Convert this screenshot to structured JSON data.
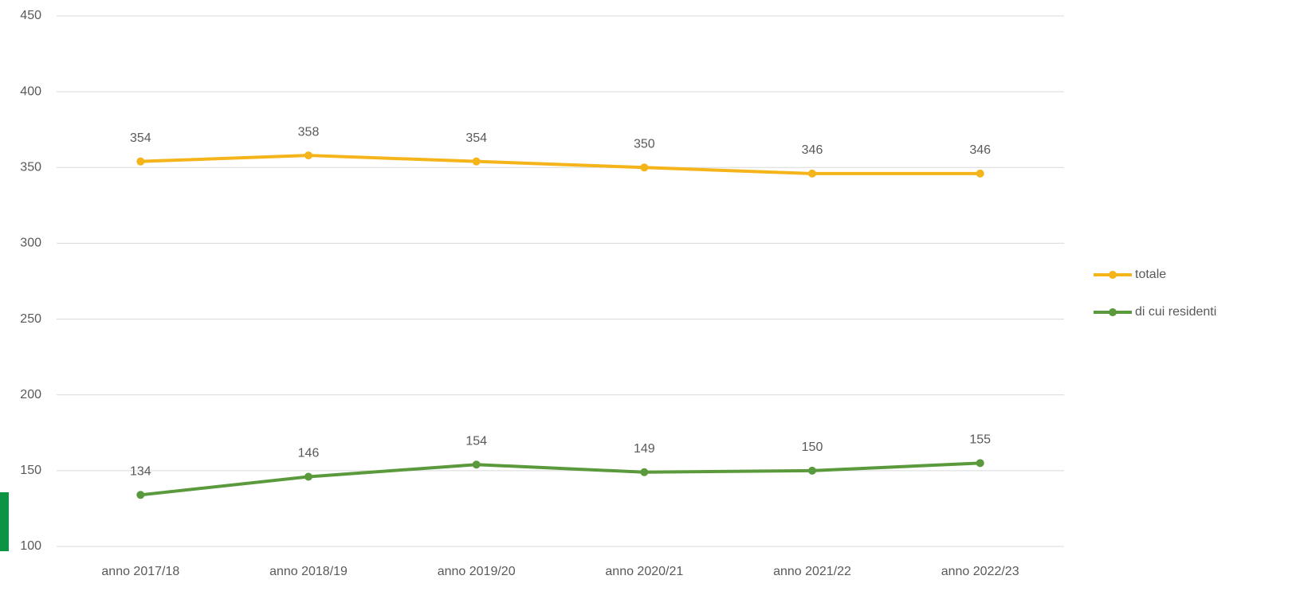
{
  "chart_data": {
    "type": "line",
    "categories": [
      "anno 2017/18",
      "anno 2018/19",
      "anno 2019/20",
      "anno 2020/21",
      "anno 2021/22",
      "anno 2022/23"
    ],
    "series": [
      {
        "name": "totale",
        "color": "#f4b41a",
        "values": [
          354,
          358,
          354,
          350,
          346,
          346
        ]
      },
      {
        "name": "di cui residenti",
        "color": "#5b9a3c",
        "values": [
          134,
          146,
          154,
          149,
          150,
          155
        ]
      }
    ],
    "ylim": [
      100,
      450
    ],
    "yticks": [
      100,
      150,
      200,
      250,
      300,
      350,
      400,
      450
    ],
    "grid": true,
    "legend": "right"
  }
}
